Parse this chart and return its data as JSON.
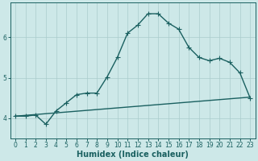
{
  "xlabel": "Humidex (Indice chaleur)",
  "bg_color": "#cde8e8",
  "grid_color": "#aacccc",
  "line_color": "#1a6060",
  "xlim": [
    -0.5,
    23.5
  ],
  "ylim": [
    3.5,
    6.85
  ],
  "yticks": [
    4,
    5,
    6
  ],
  "xticks": [
    0,
    1,
    2,
    3,
    4,
    5,
    6,
    7,
    8,
    9,
    10,
    11,
    12,
    13,
    14,
    15,
    16,
    17,
    18,
    19,
    20,
    21,
    22,
    23
  ],
  "curve1_x": [
    0,
    1,
    2,
    3,
    4,
    5,
    6,
    7,
    8,
    9,
    10,
    11,
    12,
    13,
    14,
    15,
    16,
    17,
    18,
    19,
    20,
    21,
    22,
    23
  ],
  "curve1_y": [
    4.05,
    4.05,
    4.08,
    3.85,
    4.18,
    4.38,
    4.58,
    4.62,
    4.62,
    5.02,
    5.5,
    6.1,
    6.3,
    6.58,
    6.58,
    6.35,
    6.2,
    5.75,
    5.5,
    5.42,
    5.48,
    5.38,
    5.12,
    4.5
  ],
  "curve2_x": [
    0,
    23
  ],
  "curve2_y": [
    4.05,
    4.52
  ],
  "marker": "+",
  "markersize": 4,
  "linewidth": 1.0,
  "xlabel_fontsize": 7,
  "tick_fontsize": 5.5
}
